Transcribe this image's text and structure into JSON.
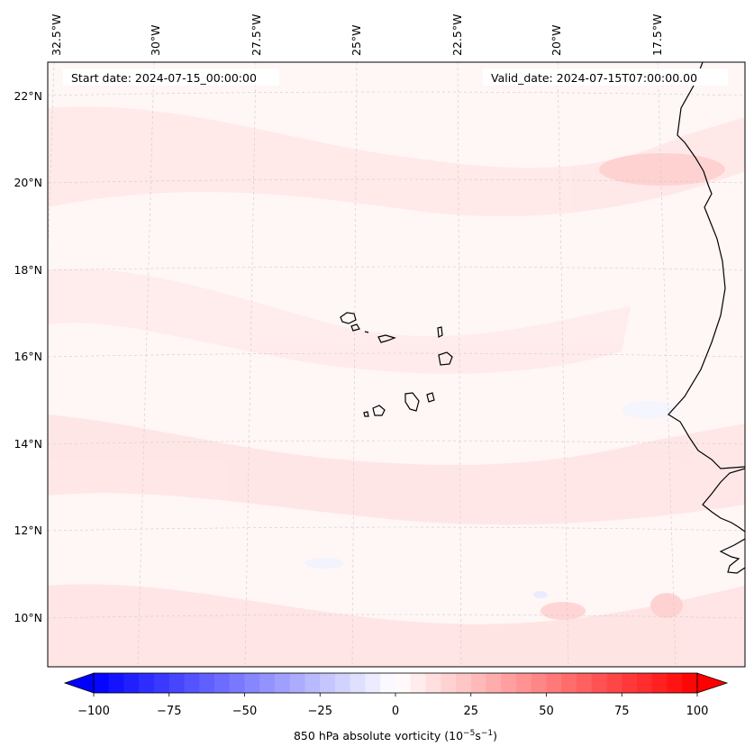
{
  "map": {
    "start_date_label": "Start date: 2024-07-15_00:00:00",
    "valid_date_label": "Valid_date: 2024-07-15T07:00:00.00",
    "lon_labels": [
      "32.5°W",
      "30°W",
      "27.5°W",
      "25°W",
      "22.5°W",
      "20°W",
      "17.5°W"
    ],
    "lat_labels": [
      "22°N",
      "20°N",
      "18°N",
      "16°N",
      "14°N",
      "12°N",
      "10°N"
    ]
  },
  "colorbar": {
    "label": "850 hPa absolute vorticity (10",
    "label_exp1": "−5",
    "label_mid": "s",
    "label_exp2": "−1",
    "label_end": ")",
    "tick_labels": [
      "−100",
      "−75",
      "−50",
      "−25",
      "0",
      "25",
      "50",
      "75",
      "100"
    ],
    "vmin": -100,
    "vmax": 100,
    "min_color": "#0000ff",
    "mid_color": "#ffffff",
    "max_color": "#ff0000"
  },
  "colors": {
    "coastline": "#000000",
    "gridline": "#c8c8c8",
    "background_field": "#fff5f5"
  }
}
